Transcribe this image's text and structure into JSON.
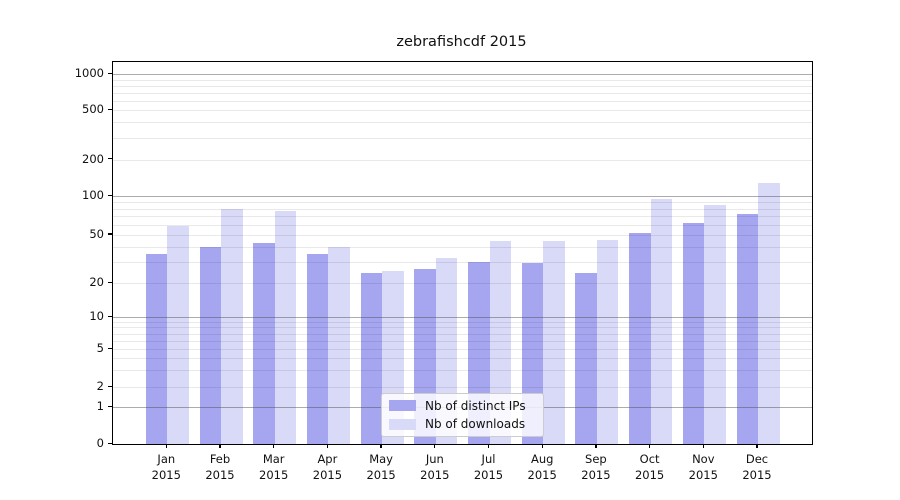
{
  "chart_data": {
    "type": "bar",
    "title": "zebrafishcdf 2015",
    "categories": [
      "Jan 2015",
      "Feb 2015",
      "Mar 2015",
      "Apr 2015",
      "May 2015",
      "Jun 2015",
      "Jul 2015",
      "Aug 2015",
      "Sep 2015",
      "Oct 2015",
      "Nov 2015",
      "Dec 2015"
    ],
    "x_months": [
      "Jan",
      "Feb",
      "Mar",
      "Apr",
      "May",
      "Jun",
      "Jul",
      "Aug",
      "Sep",
      "Oct",
      "Nov",
      "Dec"
    ],
    "x_year": "2015",
    "series": [
      {
        "name": "Nb of distinct IPs",
        "color": "#a6a6f0",
        "values": [
          35,
          40,
          43,
          35,
          24,
          26,
          30,
          29,
          24,
          52,
          62,
          73
        ]
      },
      {
        "name": "Nb of downloads",
        "color": "#d9d9f8",
        "values": [
          58,
          80,
          76,
          40,
          25,
          32,
          44,
          44,
          45,
          95,
          85,
          128
        ]
      }
    ],
    "y_axis": {
      "scale": "symlog",
      "tick_values": [
        0,
        1,
        2,
        5,
        10,
        20,
        50,
        100,
        200,
        500,
        1000
      ],
      "minor_tick_values": [
        3,
        4,
        6,
        7,
        8,
        9,
        30,
        40,
        60,
        70,
        80,
        90,
        300,
        400,
        600,
        700,
        800,
        900
      ],
      "range": [
        0,
        1150
      ]
    },
    "legend": {
      "position": "lower center"
    },
    "grid": "horizontal"
  },
  "colors": {
    "distinct_ips": "#a6a6f0",
    "downloads": "#d9d9f8",
    "grid_minor": "#ebebeb",
    "grid_major": "#b0b0b0",
    "spine": "#000000"
  }
}
